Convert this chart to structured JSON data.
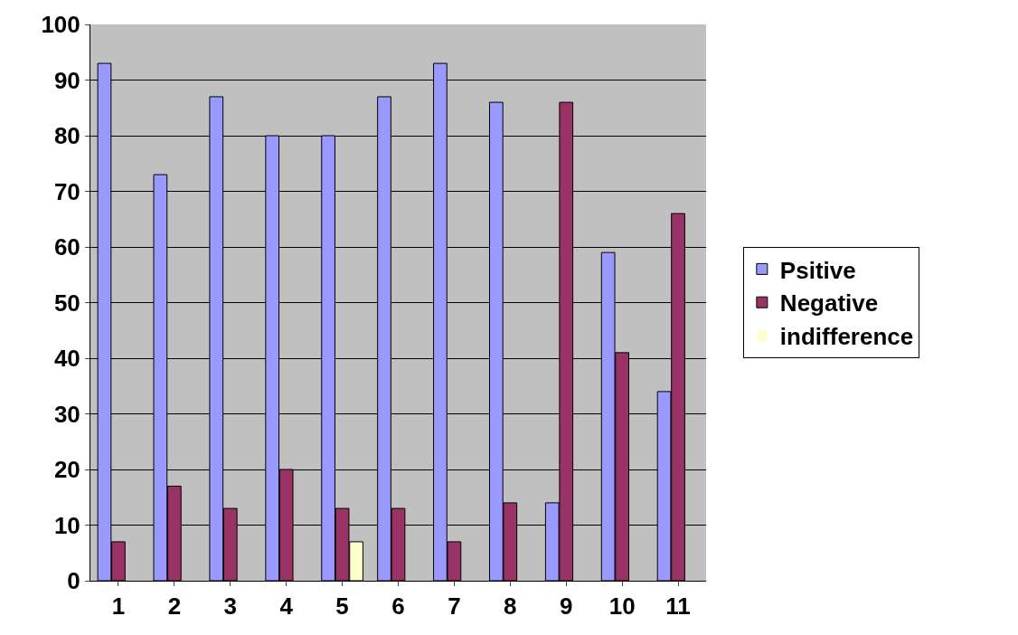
{
  "chart_data": {
    "type": "bar",
    "categories": [
      "1",
      "2",
      "3",
      "4",
      "5",
      "6",
      "7",
      "8",
      "9",
      "10",
      "11"
    ],
    "series": [
      {
        "name": "Psitive",
        "color": "#9999ff",
        "values": [
          93,
          73,
          87,
          80,
          80,
          87,
          93,
          86,
          14,
          59,
          34
        ]
      },
      {
        "name": "Negative",
        "color": "#993366",
        "values": [
          7,
          17,
          13,
          20,
          13,
          13,
          7,
          14,
          86,
          41,
          66
        ]
      },
      {
        "name": "indifference",
        "color": "#ffffcc",
        "values": [
          0,
          0,
          0,
          0,
          7,
          0,
          0,
          0,
          0,
          0,
          0
        ]
      }
    ],
    "ylim": [
      0,
      100
    ],
    "yticks": [
      0,
      10,
      20,
      30,
      40,
      50,
      60,
      70,
      80,
      90,
      100
    ],
    "grid": "y",
    "legend": "right"
  }
}
